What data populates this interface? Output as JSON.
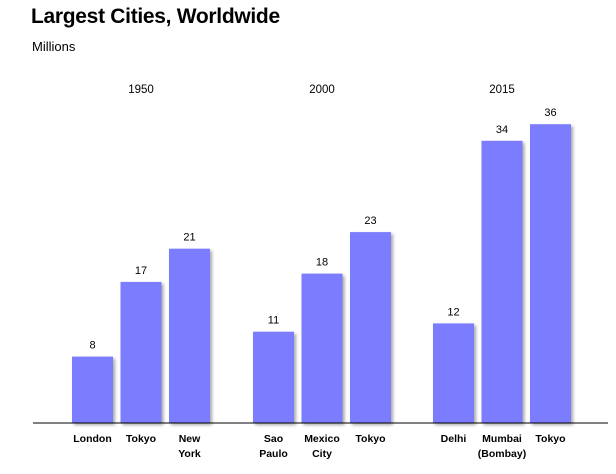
{
  "chart_data": {
    "type": "bar",
    "title": "Largest Cities, Worldwide",
    "subtitle": "Millions",
    "groups": [
      {
        "name": "1950",
        "cities": [
          {
            "label": [
              "London"
            ],
            "value": 8
          },
          {
            "label": [
              "Tokyo"
            ],
            "value": 17
          },
          {
            "label": [
              "New",
              "York"
            ],
            "value": 21
          }
        ]
      },
      {
        "name": "2000",
        "cities": [
          {
            "label": [
              "Sao",
              "Paulo"
            ],
            "value": 11
          },
          {
            "label": [
              "Mexico",
              "City"
            ],
            "value": 18
          },
          {
            "label": [
              "Tokyo"
            ],
            "value": 23
          }
        ]
      },
      {
        "name": "2015",
        "cities": [
          {
            "label": [
              "Delhi"
            ],
            "value": 12
          },
          {
            "label": [
              "Mumbai",
              "(Bombay)"
            ],
            "value": 34
          },
          {
            "label": [
              "Tokyo"
            ],
            "value": 36
          }
        ]
      }
    ],
    "ylim": [
      0,
      36
    ],
    "grid": false,
    "legend": "none",
    "bar_color": "#7b7bff"
  }
}
